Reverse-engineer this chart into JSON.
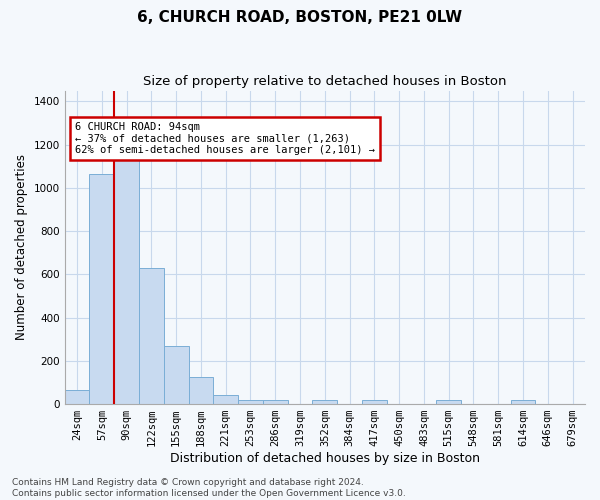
{
  "title1": "6, CHURCH ROAD, BOSTON, PE21 0LW",
  "title2": "Size of property relative to detached houses in Boston",
  "xlabel": "Distribution of detached houses by size in Boston",
  "ylabel": "Number of detached properties",
  "bar_labels": [
    "24sqm",
    "57sqm",
    "90sqm",
    "122sqm",
    "155sqm",
    "188sqm",
    "221sqm",
    "253sqm",
    "286sqm",
    "319sqm",
    "352sqm",
    "384sqm",
    "417sqm",
    "450sqm",
    "483sqm",
    "515sqm",
    "548sqm",
    "581sqm",
    "614sqm",
    "646sqm",
    "679sqm"
  ],
  "bar_values": [
    65,
    1065,
    1160,
    630,
    270,
    125,
    40,
    20,
    20,
    0,
    20,
    0,
    20,
    0,
    0,
    20,
    0,
    0,
    20,
    0,
    0
  ],
  "bar_color": "#c8daf0",
  "bar_edge_color": "#7aaed6",
  "vline_x_idx": 2,
  "vline_color": "#cc0000",
  "annotation_text": "6 CHURCH ROAD: 94sqm\n← 37% of detached houses are smaller (1,263)\n62% of semi-detached houses are larger (2,101) →",
  "annotation_box_color": "#ffffff",
  "annotation_box_edge_color": "#cc0000",
  "ylim": [
    0,
    1450
  ],
  "yticks": [
    0,
    200,
    400,
    600,
    800,
    1000,
    1200,
    1400
  ],
  "footer": "Contains HM Land Registry data © Crown copyright and database right 2024.\nContains public sector information licensed under the Open Government Licence v3.0.",
  "bg_color": "#f4f8fc",
  "plot_bg_color": "#f4f8fc",
  "grid_color": "#c8d8ec",
  "title1_fontsize": 11,
  "title2_fontsize": 9.5,
  "xlabel_fontsize": 9,
  "ylabel_fontsize": 8.5,
  "tick_fontsize": 7.5,
  "footer_fontsize": 6.5
}
